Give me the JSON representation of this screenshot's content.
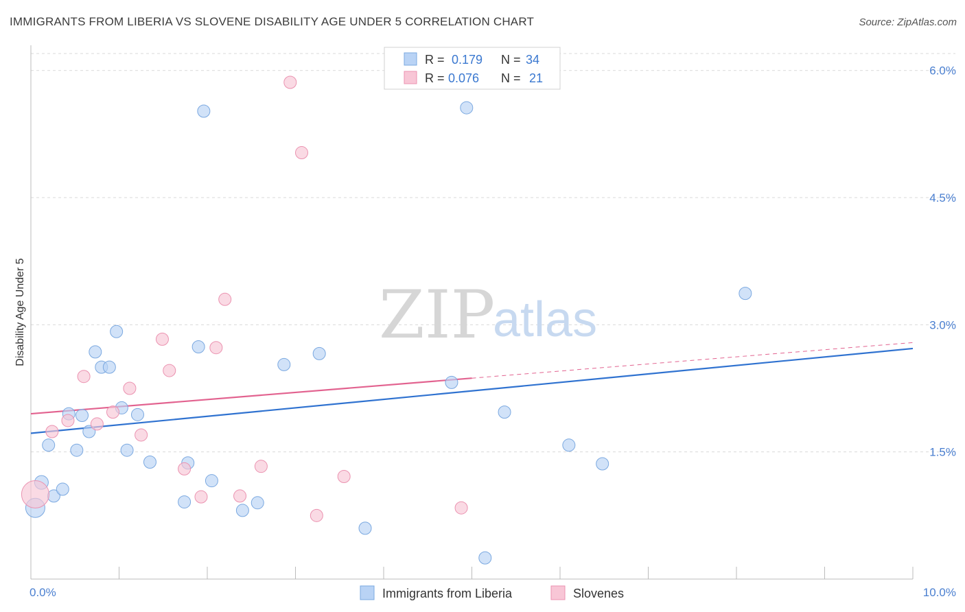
{
  "header": {
    "title": "IMMIGRANTS FROM LIBERIA VS SLOVENE DISABILITY AGE UNDER 5 CORRELATION CHART",
    "source": "Source: ZipAtlas.com"
  },
  "watermark": {
    "zip": "ZIP",
    "atlas": "atlas"
  },
  "colors": {
    "blue_fill": "#b9d3f5",
    "blue_stroke": "#7aa8e0",
    "blue_line": "#2f72d0",
    "pink_fill": "#f8c6d6",
    "pink_stroke": "#eb92b0",
    "pink_line": "#e2628f",
    "grid": "#d9d9d9",
    "axis": "#bbbbbb",
    "tick_label": "#4a7fd0"
  },
  "legend": {
    "rows": [
      {
        "r_label": "R =",
        "r_value": "0.179",
        "n_label": "N =",
        "n_value": "34",
        "series": "blue"
      },
      {
        "r_label": "R =",
        "r_value": "0.076",
        "n_label": "N =",
        "n_value": "21",
        "series": "pink"
      }
    ]
  },
  "chart_data": {
    "type": "scatter",
    "title": "IMMIGRANTS FROM LIBERIA VS SLOVENE DISABILITY AGE UNDER 5 CORRELATION CHART",
    "xlabel": "",
    "ylabel": "Disability Age Under 5",
    "xlim": [
      0,
      10
    ],
    "ylim": [
      0,
      6.2
    ],
    "x_tick_labels": [
      {
        "value": 0,
        "label": "0.0%"
      },
      {
        "value": 10,
        "label": "10.0%"
      }
    ],
    "x_minor_ticks": [
      1,
      2,
      3,
      4,
      5,
      6,
      7,
      8,
      9,
      10
    ],
    "y_ticks": [
      {
        "value": 1.5,
        "label": "1.5%"
      },
      {
        "value": 3.0,
        "label": "3.0%"
      },
      {
        "value": 4.5,
        "label": "4.5%"
      },
      {
        "value": 6.0,
        "label": "6.0%"
      }
    ],
    "grid": true,
    "legend_position": "top-center",
    "series": [
      {
        "name": "Immigrants from Liberia",
        "color": "blue",
        "points": [
          [
            0.05,
            0.84,
            14
          ],
          [
            0.12,
            1.14,
            10
          ],
          [
            0.2,
            1.58,
            9
          ],
          [
            0.26,
            0.98,
            9
          ],
          [
            0.36,
            1.06,
            9
          ],
          [
            0.43,
            1.95,
            9
          ],
          [
            0.52,
            1.52,
            9
          ],
          [
            0.58,
            1.93,
            9
          ],
          [
            0.66,
            1.74,
            9
          ],
          [
            0.73,
            2.68,
            9
          ],
          [
            0.8,
            2.5,
            9
          ],
          [
            0.89,
            2.5,
            9
          ],
          [
            0.97,
            2.92,
            9
          ],
          [
            1.03,
            2.02,
            9
          ],
          [
            1.09,
            1.52,
            9
          ],
          [
            1.21,
            1.94,
            9
          ],
          [
            1.35,
            1.38,
            9
          ],
          [
            1.74,
            0.91,
            9
          ],
          [
            1.78,
            1.37,
            9
          ],
          [
            1.9,
            2.74,
            9
          ],
          [
            1.96,
            5.52,
            9
          ],
          [
            2.05,
            1.16,
            9
          ],
          [
            2.4,
            0.81,
            9
          ],
          [
            2.57,
            0.9,
            9
          ],
          [
            2.87,
            2.53,
            9
          ],
          [
            3.27,
            2.66,
            9
          ],
          [
            3.79,
            0.6,
            9
          ],
          [
            4.77,
            2.32,
            9
          ],
          [
            4.94,
            5.56,
            9
          ],
          [
            5.15,
            0.25,
            9
          ],
          [
            5.37,
            1.97,
            9
          ],
          [
            6.1,
            1.58,
            9
          ],
          [
            6.48,
            1.36,
            9
          ],
          [
            8.1,
            3.37,
            9
          ]
        ]
      },
      {
        "name": "Slovenes",
        "color": "pink",
        "points": [
          [
            0.05,
            1.0,
            20
          ],
          [
            0.24,
            1.74,
            9
          ],
          [
            0.42,
            1.87,
            9
          ],
          [
            0.6,
            2.39,
            9
          ],
          [
            0.75,
            1.83,
            9
          ],
          [
            0.93,
            1.97,
            9
          ],
          [
            1.12,
            2.25,
            9
          ],
          [
            1.25,
            1.7,
            9
          ],
          [
            1.49,
            2.83,
            9
          ],
          [
            1.57,
            2.46,
            9
          ],
          [
            1.74,
            1.3,
            9
          ],
          [
            1.93,
            0.97,
            9
          ],
          [
            2.1,
            2.73,
            9
          ],
          [
            2.2,
            3.3,
            9
          ],
          [
            2.37,
            0.98,
            9
          ],
          [
            2.61,
            1.33,
            9
          ],
          [
            2.94,
            5.86,
            9
          ],
          [
            3.07,
            5.03,
            9
          ],
          [
            3.24,
            0.75,
            9
          ],
          [
            3.55,
            1.21,
            9
          ],
          [
            4.88,
            0.84,
            9
          ]
        ]
      }
    ],
    "trend_lines": [
      {
        "series": "Immigrants from Liberia",
        "x1": 0,
        "y1": 1.72,
        "x2": 10,
        "y2": 2.72,
        "style": "solid"
      },
      {
        "series": "Slovenes",
        "x1": 0,
        "y1": 1.95,
        "x2": 5.0,
        "y2": 2.37,
        "style": "solid"
      },
      {
        "series": "Slovenes",
        "x1": 5.0,
        "y1": 2.37,
        "x2": 10,
        "y2": 2.79,
        "style": "dashed"
      }
    ]
  }
}
